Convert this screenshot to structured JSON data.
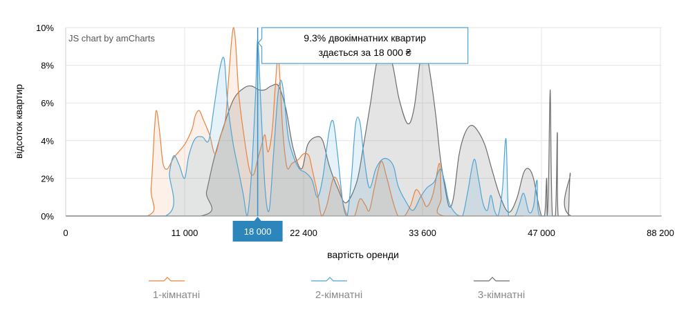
{
  "credit": "JS chart by amCharts",
  "chart_data": {
    "type": "area",
    "xlabel": "вартість оренди",
    "ylabel": "відсоток квартир",
    "y_ticks": [
      "0%",
      "2%",
      "4%",
      "6%",
      "8%",
      "10%"
    ],
    "ylim": [
      0,
      10
    ],
    "x_ticks": [
      {
        "label": "0",
        "value": 0
      },
      {
        "label": "11 000",
        "value": 11000
      },
      {
        "label": "22 400",
        "value": 22400
      },
      {
        "label": "33 600",
        "value": 33600
      },
      {
        "label": "47 000",
        "value": 47000
      },
      {
        "label": "88 200",
        "value": 88200
      }
    ],
    "grid": true,
    "legend_position": "bottom",
    "series": [
      {
        "name": "1-кімнатні",
        "color": "#e8823f",
        "points": [
          [
            0,
            0
          ],
          [
            7500,
            0
          ],
          [
            7900,
            1.5
          ],
          [
            8200,
            4.5
          ],
          [
            8400,
            5.6
          ],
          [
            8700,
            4.4
          ],
          [
            9000,
            2.8
          ],
          [
            9400,
            2.5
          ],
          [
            10000,
            3.1
          ],
          [
            11000,
            3.8
          ],
          [
            11700,
            4.6
          ],
          [
            12000,
            5.3
          ],
          [
            12400,
            5.6
          ],
          [
            12800,
            5.1
          ],
          [
            13400,
            4.3
          ],
          [
            13900,
            3.3
          ],
          [
            14400,
            4.2
          ],
          [
            14900,
            5.1
          ],
          [
            15200,
            7.2
          ],
          [
            15500,
            9.3
          ],
          [
            15700,
            10.0
          ],
          [
            15900,
            9.1
          ],
          [
            16200,
            6.4
          ],
          [
            16700,
            4.2
          ],
          [
            17200,
            2.5
          ],
          [
            17600,
            2.2
          ],
          [
            18000,
            3.0
          ],
          [
            18400,
            3.8
          ],
          [
            18700,
            4.3
          ],
          [
            19000,
            3.4
          ],
          [
            19400,
            4.6
          ],
          [
            19700,
            7.0
          ],
          [
            20000,
            8.4
          ],
          [
            20400,
            4.6
          ],
          [
            20800,
            2.6
          ],
          [
            21300,
            2.8
          ],
          [
            21900,
            3.0
          ],
          [
            22400,
            3.3
          ],
          [
            22900,
            3.2
          ],
          [
            23200,
            2.5
          ],
          [
            23700,
            1.2
          ],
          [
            24100,
            0
          ],
          [
            24600,
            0.6
          ],
          [
            25200,
            2.0
          ],
          [
            25700,
            1.7
          ],
          [
            26200,
            0.5
          ],
          [
            26600,
            0
          ],
          [
            27200,
            0
          ],
          [
            27700,
            0.9
          ],
          [
            28200,
            0.6
          ],
          [
            28600,
            0.3
          ],
          [
            29100,
            1.6
          ],
          [
            29700,
            2.9
          ],
          [
            30200,
            2.1
          ],
          [
            30800,
            0.8
          ],
          [
            31300,
            0
          ],
          [
            31900,
            0
          ],
          [
            32500,
            0.6
          ],
          [
            33000,
            1.4
          ],
          [
            33600,
            0.9
          ],
          [
            34100,
            0.5
          ],
          [
            34800,
            1.2
          ],
          [
            35500,
            2.8
          ],
          [
            35700,
            1.0
          ],
          [
            36000,
            0
          ],
          [
            45000,
            0
          ]
        ]
      },
      {
        "name": "2-кімнатні",
        "color": "#4da4d4",
        "points": [
          [
            0,
            0
          ],
          [
            9200,
            0
          ],
          [
            9600,
            2.3
          ],
          [
            10000,
            3.2
          ],
          [
            10500,
            2.7
          ],
          [
            11000,
            2.0
          ],
          [
            11400,
            3.2
          ],
          [
            12000,
            4.1
          ],
          [
            12700,
            4.2
          ],
          [
            13300,
            4.0
          ],
          [
            13800,
            5.7
          ],
          [
            14400,
            7.9
          ],
          [
            14800,
            8.3
          ],
          [
            15100,
            6.1
          ],
          [
            15600,
            4.0
          ],
          [
            16100,
            2.6
          ],
          [
            16600,
            1.2
          ],
          [
            17000,
            0
          ],
          [
            17400,
            2.2
          ],
          [
            17800,
            6.5
          ],
          [
            18000,
            9.3
          ],
          [
            18300,
            6.0
          ],
          [
            18700,
            1.5
          ],
          [
            19100,
            0.3
          ],
          [
            19500,
            3.1
          ],
          [
            19900,
            6.2
          ],
          [
            20200,
            7.2
          ],
          [
            20500,
            6.5
          ],
          [
            20900,
            4.3
          ],
          [
            21400,
            3.2
          ],
          [
            22000,
            2.5
          ],
          [
            22600,
            2.3
          ],
          [
            23200,
            1.9
          ],
          [
            23700,
            1.0
          ],
          [
            24200,
            2.0
          ],
          [
            24800,
            4.5
          ],
          [
            25200,
            5.0
          ],
          [
            25600,
            3.3
          ],
          [
            26100,
            0.7
          ],
          [
            26500,
            0
          ],
          [
            26900,
            2.0
          ],
          [
            27300,
            4.9
          ],
          [
            27700,
            5.0
          ],
          [
            28100,
            3.1
          ],
          [
            28600,
            1.5
          ],
          [
            29200,
            2.5
          ],
          [
            29800,
            3.0
          ],
          [
            30400,
            3.0
          ],
          [
            30900,
            2.6
          ],
          [
            31300,
            1.6
          ],
          [
            32000,
            0.8
          ],
          [
            32700,
            0.3
          ],
          [
            33400,
            1.0
          ],
          [
            34100,
            1.5
          ],
          [
            34900,
            1.8
          ],
          [
            35600,
            2.5
          ],
          [
            36100,
            1.8
          ],
          [
            36600,
            0.7
          ],
          [
            37400,
            0.1
          ],
          [
            38100,
            0
          ],
          [
            38700,
            1.3
          ],
          [
            39400,
            3.0
          ],
          [
            39900,
            2.0
          ],
          [
            40400,
            0.7
          ],
          [
            40900,
            0.3
          ],
          [
            41300,
            1.1
          ],
          [
            41700,
            0.3
          ],
          [
            42100,
            0
          ],
          [
            42600,
            1.4
          ],
          [
            43000,
            4.1
          ],
          [
            43300,
            0
          ],
          [
            44000,
            0
          ],
          [
            44500,
            0.6
          ],
          [
            45000,
            1.2
          ],
          [
            45600,
            0.2
          ],
          [
            46100,
            0.5
          ],
          [
            46500,
            1.9
          ],
          [
            46800,
            0
          ],
          [
            53000,
            0
          ]
        ]
      },
      {
        "name": "3-кімнатні",
        "color": "#6b6b6b",
        "points": [
          [
            0,
            0
          ],
          [
            12500,
            0
          ],
          [
            13100,
            1.3
          ],
          [
            13800,
            3.0
          ],
          [
            14700,
            4.7
          ],
          [
            15700,
            6.2
          ],
          [
            16700,
            6.8
          ],
          [
            17400,
            6.9
          ],
          [
            18100,
            6.7
          ],
          [
            18700,
            6.7
          ],
          [
            19300,
            6.9
          ],
          [
            20000,
            6.9
          ],
          [
            20700,
            5.7
          ],
          [
            21400,
            3.6
          ],
          [
            22200,
            2.5
          ],
          [
            22800,
            3.8
          ],
          [
            23600,
            4.2
          ],
          [
            24200,
            4.0
          ],
          [
            24800,
            2.7
          ],
          [
            25600,
            1.5
          ],
          [
            26400,
            0.7
          ],
          [
            27400,
            1.8
          ],
          [
            28000,
            3.6
          ],
          [
            28700,
            6.0
          ],
          [
            29300,
            8.2
          ],
          [
            29900,
            8.8
          ],
          [
            30700,
            8.2
          ],
          [
            31400,
            6.2
          ],
          [
            32200,
            4.9
          ],
          [
            32800,
            5.7
          ],
          [
            33400,
            8.3
          ],
          [
            33900,
            8.9
          ],
          [
            34500,
            7.4
          ],
          [
            35100,
            5.3
          ],
          [
            35600,
            3.1
          ],
          [
            36100,
            1.6
          ],
          [
            36600,
            0.5
          ],
          [
            37100,
            1.0
          ],
          [
            37700,
            3.2
          ],
          [
            38300,
            4.3
          ],
          [
            39000,
            4.8
          ],
          [
            39700,
            4.6
          ],
          [
            40600,
            3.8
          ],
          [
            41400,
            2.5
          ],
          [
            42300,
            1.1
          ],
          [
            43300,
            0.2
          ],
          [
            44200,
            0.9
          ],
          [
            45000,
            2.3
          ],
          [
            45600,
            2.5
          ],
          [
            46100,
            2.0
          ],
          [
            46600,
            0.8
          ],
          [
            47000,
            0
          ],
          [
            48000,
            0
          ],
          [
            48400,
            0.6
          ],
          [
            48800,
            2.0
          ],
          [
            49000,
            0
          ],
          [
            49500,
            2.1
          ],
          [
            50000,
            6.7
          ],
          [
            50400,
            2.2
          ],
          [
            50800,
            0
          ],
          [
            51800,
            0
          ],
          [
            52200,
            1.8
          ],
          [
            52500,
            4.4
          ],
          [
            52800,
            0
          ],
          [
            55500,
            0
          ],
          [
            56300,
            0
          ],
          [
            56700,
            1.6
          ],
          [
            57000,
            2.2
          ],
          [
            57300,
            0
          ],
          [
            88200,
            0
          ]
        ]
      }
    ],
    "tooltip": {
      "x": 18000,
      "x_label": "18 000",
      "line1": "9.3% двокімнатних квартир",
      "line2": "здається за 18 000 ₴"
    }
  }
}
